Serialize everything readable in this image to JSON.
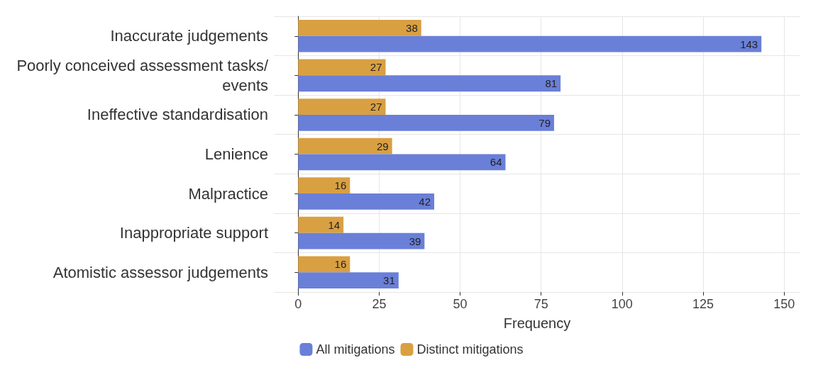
{
  "chart_data": {
    "type": "bar",
    "orientation": "horizontal",
    "xlabel": "Frequency",
    "categories": [
      "Inaccurate judgements",
      "Poorly conceived assessment tasks/events",
      "Ineffective standardisation",
      "Lenience",
      "Malpractice",
      "Inappropriate support",
      "Atomistic assessor judgements"
    ],
    "series": [
      {
        "name": "All mitigations",
        "color": "#6a7fd8",
        "values": [
          143,
          81,
          79,
          64,
          42,
          39,
          31
        ]
      },
      {
        "name": "Distinct mitigations",
        "color": "#d9a042",
        "values": [
          38,
          27,
          27,
          29,
          16,
          14,
          16
        ]
      }
    ],
    "xlim": [
      -7.5,
      155
    ],
    "xticks": [
      0,
      25,
      50,
      75,
      100,
      125,
      150
    ],
    "grid": true,
    "legend": "bottom",
    "data_labels": true
  }
}
